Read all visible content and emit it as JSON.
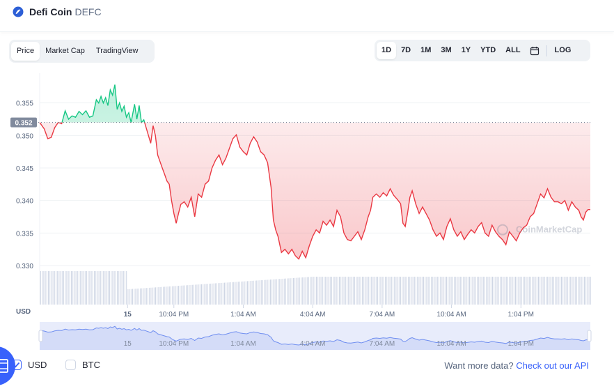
{
  "header": {
    "name": "Defi Coin",
    "symbol": "DEFC"
  },
  "view_tabs": [
    {
      "label": "Price",
      "active": true
    },
    {
      "label": "Market Cap",
      "active": false
    },
    {
      "label": "TradingView",
      "active": false
    }
  ],
  "ranges": [
    {
      "label": "1D",
      "active": true
    },
    {
      "label": "7D",
      "active": false
    },
    {
      "label": "1M",
      "active": false
    },
    {
      "label": "3M",
      "active": false
    },
    {
      "label": "1Y",
      "active": false
    },
    {
      "label": "YTD",
      "active": false
    },
    {
      "label": "ALL",
      "active": false
    }
  ],
  "log_label": "LOG",
  "colors": {
    "up": "#16c784",
    "down": "#ea3943",
    "accent": "#3861fb",
    "text_muted": "#616e85"
  },
  "chart_data": {
    "type": "line",
    "title": "",
    "ylabel": "USD",
    "reference_price": 0.352,
    "reference_label": "0.352",
    "ylim": [
      0.3285,
      0.3585
    ],
    "yticks": [
      {
        "value": 0.355,
        "label": "0.355"
      },
      {
        "value": 0.35,
        "label": "0.350"
      },
      {
        "value": 0.345,
        "label": "0.345"
      },
      {
        "value": 0.34,
        "label": "0.340"
      },
      {
        "value": 0.335,
        "label": "0.335"
      },
      {
        "value": 0.33,
        "label": "0.330"
      }
    ],
    "xticks": [
      {
        "t": 1.0,
        "label": "15"
      },
      {
        "t": 3.0,
        "label": "10:04 PM"
      },
      {
        "t": 6.0,
        "label": "1:04 AM"
      },
      {
        "t": 9.0,
        "label": "4:04 AM"
      },
      {
        "t": 12.0,
        "label": "7:04 AM"
      },
      {
        "t": 15.0,
        "label": "10:04 AM"
      },
      {
        "t": 18.0,
        "label": "1:04 PM"
      }
    ],
    "x_units": "hours from midnight (15)",
    "xlim": [
      -2.8,
      21.0
    ],
    "series": [
      {
        "values": [
          [
            -2.8,
            0.352
          ],
          [
            -2.6,
            0.351
          ],
          [
            -2.45,
            0.3495
          ],
          [
            -2.3,
            0.3497
          ],
          [
            -2.15,
            0.3512
          ],
          [
            -2.0,
            0.352
          ],
          [
            -1.85,
            0.3518
          ],
          [
            -1.7,
            0.3538
          ],
          [
            -1.55,
            0.3525
          ],
          [
            -1.4,
            0.353
          ],
          [
            -1.25,
            0.3528
          ],
          [
            -1.1,
            0.3537
          ],
          [
            -0.95,
            0.3532
          ],
          [
            -0.8,
            0.3538
          ],
          [
            -0.65,
            0.3528
          ],
          [
            -0.5,
            0.353
          ],
          [
            -0.35,
            0.3555
          ],
          [
            -0.25,
            0.355
          ],
          [
            -0.15,
            0.356
          ],
          [
            -0.05,
            0.355
          ],
          [
            0.05,
            0.3558
          ],
          [
            0.15,
            0.3546
          ],
          [
            0.25,
            0.357
          ],
          [
            0.35,
            0.3562
          ],
          [
            0.45,
            0.3578
          ],
          [
            0.55,
            0.354
          ],
          [
            0.65,
            0.355
          ],
          [
            0.75,
            0.3537
          ],
          [
            0.85,
            0.3545
          ],
          [
            0.95,
            0.3528
          ],
          [
            1.05,
            0.3535
          ],
          [
            1.15,
            0.352
          ],
          [
            1.3,
            0.3548
          ],
          [
            1.4,
            0.3525
          ],
          [
            1.5,
            0.3546
          ],
          [
            1.6,
            0.352
          ],
          [
            1.7,
            0.3524
          ],
          [
            1.8,
            0.3512
          ],
          [
            1.9,
            0.35
          ],
          [
            2.0,
            0.3488
          ],
          [
            2.1,
            0.3515
          ],
          [
            2.2,
            0.35
          ],
          [
            2.3,
            0.347
          ],
          [
            2.4,
            0.346
          ],
          [
            2.5,
            0.345
          ],
          [
            2.6,
            0.344
          ],
          [
            2.7,
            0.343
          ],
          [
            2.8,
            0.3425
          ],
          [
            2.9,
            0.34
          ],
          [
            3.0,
            0.338
          ],
          [
            3.1,
            0.3365
          ],
          [
            3.2,
            0.338
          ],
          [
            3.3,
            0.3394
          ],
          [
            3.45,
            0.3398
          ],
          [
            3.6,
            0.339
          ],
          [
            3.75,
            0.3405
          ],
          [
            3.9,
            0.3375
          ],
          [
            4.05,
            0.341
          ],
          [
            4.2,
            0.3405
          ],
          [
            4.35,
            0.3425
          ],
          [
            4.5,
            0.343
          ],
          [
            4.65,
            0.345
          ],
          [
            4.8,
            0.3462
          ],
          [
            4.95,
            0.347
          ],
          [
            5.1,
            0.3455
          ],
          [
            5.25,
            0.3465
          ],
          [
            5.4,
            0.348
          ],
          [
            5.55,
            0.3495
          ],
          [
            5.7,
            0.3501
          ],
          [
            5.85,
            0.3482
          ],
          [
            6.0,
            0.3475
          ],
          [
            6.15,
            0.347
          ],
          [
            6.3,
            0.3488
          ],
          [
            6.45,
            0.3498
          ],
          [
            6.6,
            0.349
          ],
          [
            6.75,
            0.3475
          ],
          [
            6.9,
            0.347
          ],
          [
            7.05,
            0.3458
          ],
          [
            7.2,
            0.342
          ],
          [
            7.3,
            0.337
          ],
          [
            7.4,
            0.3355
          ],
          [
            7.5,
            0.3345
          ],
          [
            7.65,
            0.332
          ],
          [
            7.8,
            0.3325
          ],
          [
            7.95,
            0.3318
          ],
          [
            8.1,
            0.3325
          ],
          [
            8.25,
            0.3315
          ],
          [
            8.4,
            0.331
          ],
          [
            8.55,
            0.3322
          ],
          [
            8.7,
            0.3312
          ],
          [
            8.85,
            0.333
          ],
          [
            9.0,
            0.3345
          ],
          [
            9.15,
            0.3355
          ],
          [
            9.3,
            0.335
          ],
          [
            9.45,
            0.3368
          ],
          [
            9.6,
            0.3362
          ],
          [
            9.75,
            0.337
          ],
          [
            9.9,
            0.336
          ],
          [
            10.05,
            0.3385
          ],
          [
            10.2,
            0.3375
          ],
          [
            10.35,
            0.335
          ],
          [
            10.5,
            0.334
          ],
          [
            10.65,
            0.3338
          ],
          [
            10.8,
            0.3345
          ],
          [
            10.95,
            0.3352
          ],
          [
            11.1,
            0.334
          ],
          [
            11.25,
            0.3355
          ],
          [
            11.4,
            0.3375
          ],
          [
            11.5,
            0.3385
          ],
          [
            11.6,
            0.3405
          ],
          [
            11.75,
            0.341
          ],
          [
            11.9,
            0.3405
          ],
          [
            12.05,
            0.3412
          ],
          [
            12.2,
            0.3407
          ],
          [
            12.35,
            0.3418
          ],
          [
            12.5,
            0.3408
          ],
          [
            12.65,
            0.3402
          ],
          [
            12.8,
            0.3395
          ],
          [
            12.9,
            0.3365
          ],
          [
            13.0,
            0.336
          ],
          [
            13.1,
            0.338
          ],
          [
            13.2,
            0.3405
          ],
          [
            13.3,
            0.3415
          ],
          [
            13.45,
            0.3395
          ],
          [
            13.6,
            0.338
          ],
          [
            13.75,
            0.339
          ],
          [
            13.9,
            0.338
          ],
          [
            14.05,
            0.337
          ],
          [
            14.2,
            0.3355
          ],
          [
            14.35,
            0.3345
          ],
          [
            14.5,
            0.335
          ],
          [
            14.65,
            0.334
          ],
          [
            14.8,
            0.336
          ],
          [
            14.95,
            0.3372
          ],
          [
            15.1,
            0.3355
          ],
          [
            15.25,
            0.3345
          ],
          [
            15.4,
            0.3352
          ],
          [
            15.55,
            0.334
          ],
          [
            15.7,
            0.3348
          ],
          [
            15.85,
            0.3355
          ],
          [
            16.0,
            0.335
          ],
          [
            16.15,
            0.336
          ],
          [
            16.3,
            0.3366
          ],
          [
            16.45,
            0.335
          ],
          [
            16.6,
            0.3345
          ],
          [
            16.75,
            0.3362
          ],
          [
            16.9,
            0.3352
          ],
          [
            17.05,
            0.3345
          ],
          [
            17.2,
            0.334
          ],
          [
            17.35,
            0.3332
          ],
          [
            17.5,
            0.3352
          ],
          [
            17.65,
            0.3345
          ],
          [
            17.8,
            0.3338
          ],
          [
            17.95,
            0.335
          ],
          [
            18.1,
            0.3358
          ],
          [
            18.25,
            0.3362
          ],
          [
            18.4,
            0.3375
          ],
          [
            18.55,
            0.338
          ],
          [
            18.7,
            0.3395
          ],
          [
            18.85,
            0.341
          ],
          [
            19.0,
            0.3404
          ],
          [
            19.15,
            0.3418
          ],
          [
            19.3,
            0.3405
          ],
          [
            19.45,
            0.3398
          ],
          [
            19.6,
            0.3398
          ],
          [
            19.75,
            0.3395
          ],
          [
            19.9,
            0.34
          ],
          [
            20.05,
            0.3385
          ],
          [
            20.2,
            0.3398
          ],
          [
            20.35,
            0.339
          ],
          [
            20.5,
            0.3385
          ],
          [
            20.6,
            0.3375
          ],
          [
            20.7,
            0.337
          ],
          [
            20.8,
            0.3382
          ],
          [
            20.9,
            0.3386
          ],
          [
            21.0,
            0.3386
          ]
        ]
      }
    ],
    "volume": "relative bars: high segment before 15, then ramping up and flat",
    "navigator_labels": [
      "15",
      "10:04 PM",
      "1:04 AM",
      "4:04 AM",
      "7:04 AM",
      "10:04 AM",
      "1:04 PM"
    ],
    "watermark": "CoinMarketCap"
  },
  "currency_options": [
    {
      "label": "USD",
      "checked": true
    },
    {
      "label": "BTC",
      "checked": false
    }
  ],
  "footer": {
    "more_data_text": "Want more data?",
    "api_link": "Check out our API"
  }
}
